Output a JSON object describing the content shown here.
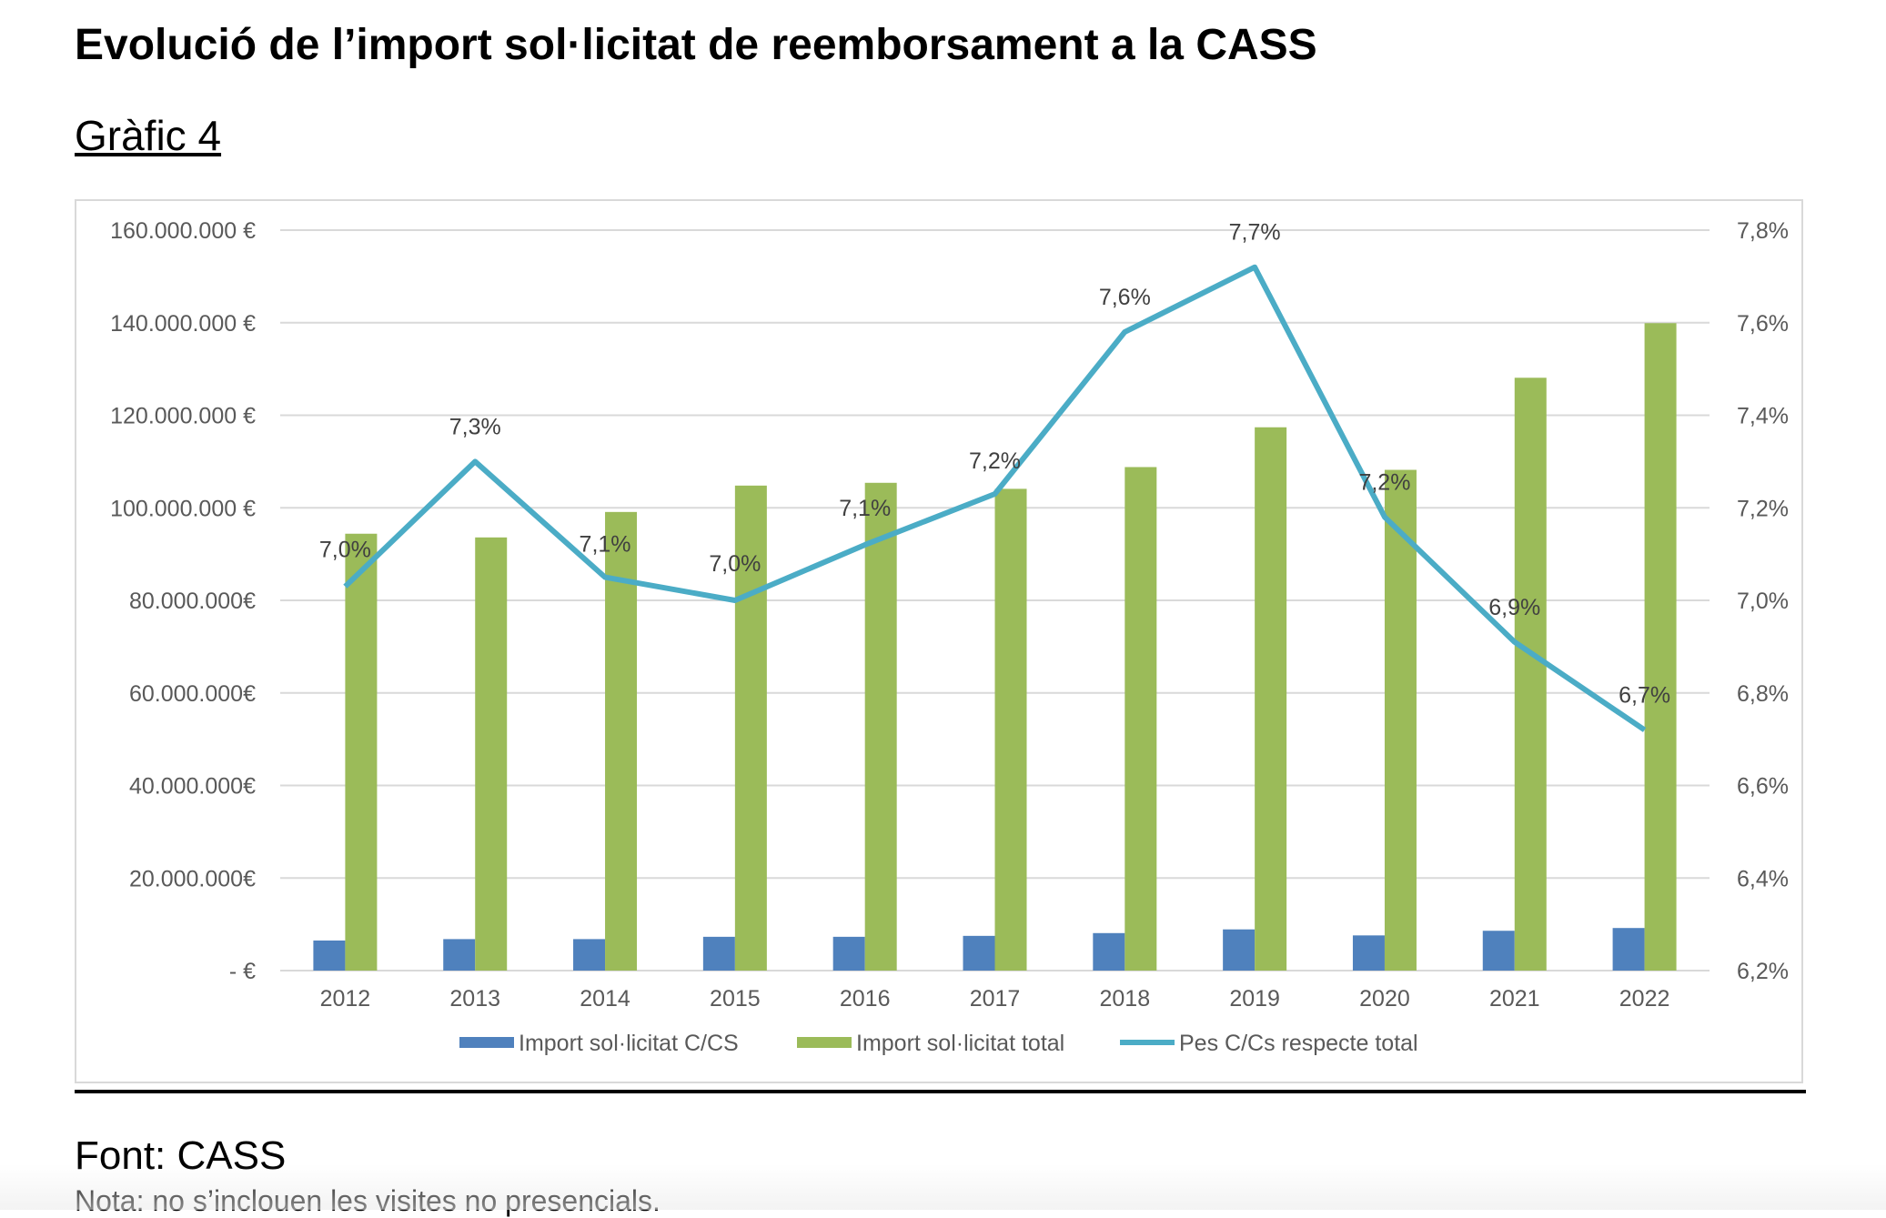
{
  "title": "Evolució de l’import sol·licitat de reemborsament a la CASS",
  "subtitle": "Gràfic 4",
  "source": "Font: CASS",
  "note": "Nota: no s’inclouen les visites no presencials.",
  "chart_data": {
    "type": "bar+line",
    "categories": [
      "2012",
      "2013",
      "2014",
      "2015",
      "2016",
      "2017",
      "2018",
      "2019",
      "2020",
      "2021",
      "2022"
    ],
    "series": [
      {
        "name": "Import sol·licitat C/CS",
        "type": "bar",
        "axis": "left",
        "color": "#4f81bd",
        "values": [
          6500000,
          6800000,
          6800000,
          7300000,
          7300000,
          7500000,
          8100000,
          8900000,
          7600000,
          8600000,
          9200000
        ]
      },
      {
        "name": "Import sol·licitat total",
        "type": "bar",
        "axis": "left",
        "color": "#9bbb59",
        "values": [
          94400000,
          93600000,
          99100000,
          104800000,
          105400000,
          104100000,
          108800000,
          117400000,
          108200000,
          128100000,
          139900000
        ]
      },
      {
        "name": "Pes C/Cs respecte total",
        "type": "line",
        "axis": "right",
        "color": "#4bacc6",
        "values": [
          7.03,
          7.3,
          7.05,
          7.0,
          7.12,
          7.23,
          7.58,
          7.72,
          7.18,
          6.91,
          6.72
        ],
        "labels": [
          "7,0%",
          "7,3%",
          "7,1%",
          "7,0%",
          "7,1%",
          "7,2%",
          "7,6%",
          "7,7%",
          "7,2%",
          "6,9%",
          "6,7%"
        ]
      }
    ],
    "y_left": {
      "range": [
        0,
        160000000
      ],
      "ticks": [
        "-   €",
        "20.000.000€",
        "40.000.000€",
        "60.000.000€",
        "80.000.000€",
        "100.000.000 €",
        "120.000.000 €",
        "140.000.000 €",
        "160.000.000 €"
      ]
    },
    "y_right": {
      "range": [
        6.2,
        7.8
      ],
      "ticks": [
        "6,2%",
        "6,4%",
        "6,6%",
        "6,8%",
        "7,0%",
        "7,2%",
        "7,4%",
        "7,6%",
        "7,8%"
      ]
    },
    "grid": true,
    "legend": "bottom",
    "title": "",
    "xlabel": "",
    "ylabel": ""
  }
}
